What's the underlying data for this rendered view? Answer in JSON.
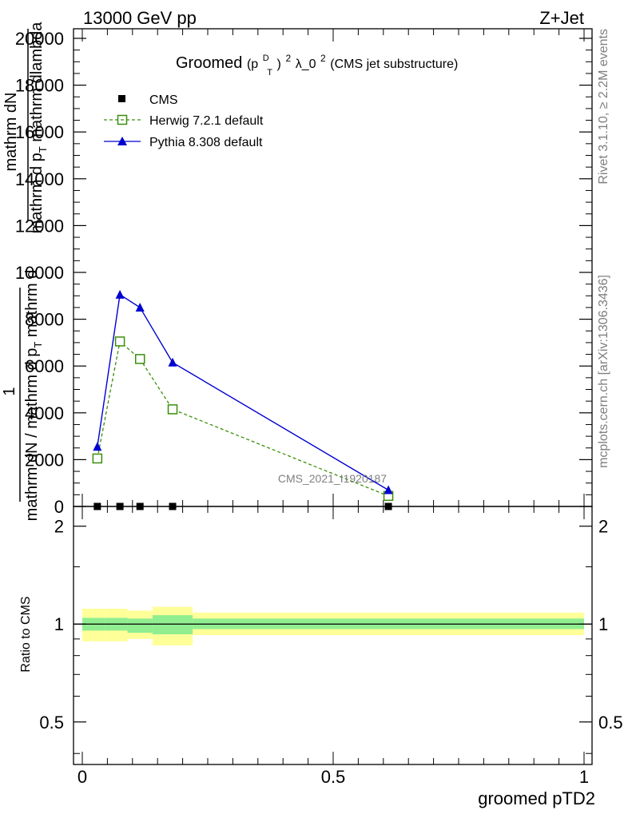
{
  "header": {
    "left": "13000 GeV pp",
    "right": "Z+Jet"
  },
  "side": {
    "rivet": "Rivet 3.1.10, ≥ 2.2M events",
    "mcplots": "mcplots.cern.ch [arXiv:1306.3436]"
  },
  "chart_data": [
    {
      "type": "line",
      "title": "Groomed(p_T^D)^2 λ_0^2 (CMS jet substructure)",
      "title_main": "Groomed",
      "title_p": "(p",
      "title_sup_d": "D",
      "title_sub_t": "T",
      "title_close": ")",
      "title_sup_2": "2",
      "title_lambda": " λ_0",
      "title_sup_2b": "2",
      "title_rest": " (CMS jet substructure)",
      "ylabel_top": "mathrm dN",
      "ylabel_top2": "mathrm d p",
      "ylabel_top2_sub": "T",
      "ylabel_top2_rest": " mathrm dlambda",
      "ylabel_one": "1",
      "ylabel_bottom": "mathrm dN / mathrm d p",
      "ylabel_bottom_sub": "T",
      "ylabel_bottom_rest": " mathrm d",
      "ylim": [
        0,
        20000
      ],
      "yticks": [
        0,
        2000,
        4000,
        6000,
        8000,
        10000,
        12000,
        14000,
        16000,
        18000,
        20000
      ],
      "ytick_labels": [
        "0",
        "2000",
        "4000",
        "6000",
        "8000",
        "10000",
        "12000",
        "14000",
        "16000",
        "18000",
        "20000"
      ],
      "xlim": [
        0,
        1
      ],
      "watermark": "CMS_2021_I1920187",
      "series": [
        {
          "name": "CMS",
          "style": "data",
          "color": "#000000",
          "x": [
            0.03,
            0.075,
            0.115,
            0.18,
            0.61
          ],
          "y": [
            0,
            0,
            0,
            0,
            0
          ]
        },
        {
          "name": "Herwig 7.2.1 default",
          "style": "dashed-square",
          "color": "#3a8e0a",
          "x": [
            0.03,
            0.075,
            0.115,
            0.18,
            0.61
          ],
          "y": [
            2050,
            7050,
            6300,
            4150,
            450
          ]
        },
        {
          "name": "Pythia 8.308 default",
          "style": "solid-triangle",
          "color": "#0000d0",
          "x": [
            0.03,
            0.075,
            0.115,
            0.18,
            0.61
          ],
          "y": [
            2550,
            9050,
            8500,
            6150,
            700
          ]
        }
      ]
    },
    {
      "type": "area",
      "ylabel": "Ratio to CMS",
      "xlabel": "groomed pTD2",
      "ylim": [
        0.37,
        2.3
      ],
      "log_y": true,
      "yticks": [
        0.5,
        1,
        2
      ],
      "ytick_labels": [
        "0.5",
        "1",
        "2"
      ],
      "xlim": [
        0,
        1
      ],
      "xticks": [
        0,
        0.5,
        1
      ],
      "xtick_labels": [
        "0",
        "0.5",
        "1"
      ],
      "bins": [
        {
          "x0": 0.0,
          "x1": 0.045,
          "stat": [
            0.955,
            1.045
          ],
          "total": [
            0.885,
            1.115
          ]
        },
        {
          "x0": 0.045,
          "x1": 0.09,
          "stat": [
            0.955,
            1.045
          ],
          "total": [
            0.885,
            1.115
          ]
        },
        {
          "x0": 0.09,
          "x1": 0.14,
          "stat": [
            0.94,
            1.04
          ],
          "total": [
            0.9,
            1.1
          ]
        },
        {
          "x0": 0.14,
          "x1": 0.22,
          "stat": [
            0.93,
            1.065
          ],
          "total": [
            0.86,
            1.13
          ]
        },
        {
          "x0": 0.22,
          "x1": 1.0,
          "stat": [
            0.965,
            1.04
          ],
          "total": [
            0.925,
            1.085
          ]
        }
      ],
      "colors": {
        "stat": "#90ee90",
        "total": "#ffff99"
      }
    }
  ]
}
